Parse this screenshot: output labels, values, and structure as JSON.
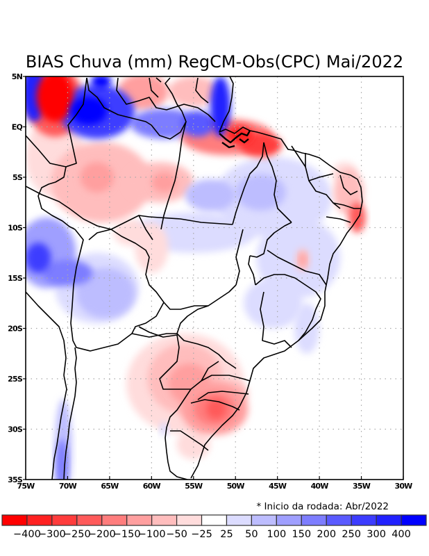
{
  "chart_data": {
    "type": "heatmap",
    "title": "BIAS Chuva (mm) RegCM-Obs(CPC) Mai/2022",
    "note": "* Inicio da rodada: Abr/2022",
    "variable": "Precipitation bias (mm), RegCM minus CPC observations",
    "xlim": [
      -75,
      -30
    ],
    "ylim": [
      -35,
      5
    ],
    "grid": true,
    "x_ticks": [
      {
        "value": -75,
        "label": "75W"
      },
      {
        "value": -70,
        "label": "70W"
      },
      {
        "value": -65,
        "label": "65W"
      },
      {
        "value": -60,
        "label": "60W"
      },
      {
        "value": -55,
        "label": "55W"
      },
      {
        "value": -50,
        "label": "50W"
      },
      {
        "value": -45,
        "label": "45W"
      },
      {
        "value": -40,
        "label": "40W"
      },
      {
        "value": -35,
        "label": "35W"
      },
      {
        "value": -30,
        "label": "30W"
      }
    ],
    "y_ticks": [
      {
        "value": 5,
        "label": "5N"
      },
      {
        "value": 0,
        "label": "EQ"
      },
      {
        "value": -5,
        "label": "5S"
      },
      {
        "value": -10,
        "label": "10S"
      },
      {
        "value": -15,
        "label": "15S"
      },
      {
        "value": -20,
        "label": "20S"
      },
      {
        "value": -25,
        "label": "25S"
      },
      {
        "value": -30,
        "label": "30S"
      },
      {
        "value": -35,
        "label": "35S"
      }
    ],
    "colorbar": {
      "placement": "bottom",
      "colors": [
        "#ff0000",
        "#ff2121",
        "#ff3c3c",
        "#ff5a5a",
        "#ff7d7d",
        "#ff9f9f",
        "#ffbdbd",
        "#ffdcdc",
        "#ffffff",
        "#dcdcff",
        "#bdbdff",
        "#9f9fff",
        "#7d7dff",
        "#5a5aff",
        "#3c3cff",
        "#2121ff",
        "#0000ff"
      ],
      "labels": [
        "-400",
        "-300",
        "-250",
        "-200",
        "-150",
        "-100",
        "-50",
        "-25",
        "25",
        "50",
        "100",
        "150",
        "200",
        "250",
        "300",
        "400"
      ]
    },
    "features": [
      {
        "name": "north-amazon-dry",
        "lon": -71.5,
        "lat": 3.0,
        "rx": 2.2,
        "ry": 2.5,
        "level": 0
      },
      {
        "name": "north-amazon-dry-ring",
        "lon": -71.5,
        "lat": 2.5,
        "rx": 3.4,
        "ry": 3.5,
        "level": 3
      },
      {
        "name": "roraima-wet",
        "lon": -66.5,
        "lat": 1.5,
        "rx": 4.5,
        "ry": 2.7,
        "level": 14
      },
      {
        "name": "roraima-wet-core",
        "lon": -67.5,
        "lat": 1.6,
        "rx": 2.2,
        "ry": 1.4,
        "level": 16
      },
      {
        "name": "nw-corner-wet",
        "lon": -74.0,
        "lat": 3.5,
        "rx": 1.5,
        "ry": 3.0,
        "level": 15
      },
      {
        "name": "venezuela-wet",
        "lon": -66.0,
        "lat": 4.5,
        "rx": 1.2,
        "ry": 0.7,
        "level": 16
      },
      {
        "name": "guyana-dry",
        "lon": -61.0,
        "lat": 3.5,
        "rx": 3.0,
        "ry": 1.8,
        "level": 5
      },
      {
        "name": "amapa-wet",
        "lon": -51.8,
        "lat": 2.0,
        "rx": 1.2,
        "ry": 3.0,
        "level": 15
      },
      {
        "name": "para-north-wet",
        "lon": -58.5,
        "lat": 0.3,
        "rx": 4.0,
        "ry": 1.5,
        "level": 12
      },
      {
        "name": "para-north-wet2",
        "lon": -54.5,
        "lat": 0.3,
        "rx": 2.0,
        "ry": 1.3,
        "level": 13
      },
      {
        "name": "suriname-dry",
        "lon": -55.0,
        "lat": 3.5,
        "rx": 3.0,
        "ry": 1.5,
        "level": 6
      },
      {
        "name": "para-coast-dry",
        "lon": -51.0,
        "lat": -1.0,
        "rx": 5.5,
        "ry": 1.8,
        "level": 4
      },
      {
        "name": "maranhao-coast-dry",
        "lon": -47.0,
        "lat": -1.8,
        "rx": 2.5,
        "ry": 1.2,
        "level": 2
      },
      {
        "name": "marajo-dry",
        "lon": -49.5,
        "lat": -0.8,
        "rx": 1.6,
        "ry": 0.9,
        "level": 1
      },
      {
        "name": "west-amazon-dry",
        "lon": -71.5,
        "lat": -3.0,
        "rx": 3.5,
        "ry": 4.0,
        "level": 7
      },
      {
        "name": "central-amazon-dry",
        "lon": -66.0,
        "lat": -5.5,
        "rx": 6.0,
        "ry": 4.0,
        "level": 6
      },
      {
        "name": "central-amazon-dry-core",
        "lon": -66.5,
        "lat": -5.0,
        "rx": 2.0,
        "ry": 1.5,
        "level": 5
      },
      {
        "name": "amazonas-dry",
        "lon": -59.0,
        "lat": -5.5,
        "rx": 4.0,
        "ry": 2.0,
        "level": 6
      },
      {
        "name": "amazonas-dry-core",
        "lon": -58.5,
        "lat": -5.5,
        "rx": 1.5,
        "ry": 1.0,
        "level": 5
      },
      {
        "name": "nordeste-wet",
        "lon": -45.5,
        "lat": -7.0,
        "rx": 7.0,
        "ry": 4.0,
        "level": 9
      },
      {
        "name": "nordeste-wet-core",
        "lon": -47.0,
        "lat": -6.5,
        "rx": 3.0,
        "ry": 1.8,
        "level": 10
      },
      {
        "name": "tapajos-wet",
        "lon": -53.0,
        "lat": -6.8,
        "rx": 3.0,
        "ry": 1.6,
        "level": 10
      },
      {
        "name": "pe-dry",
        "lon": -36.5,
        "lat": -6.5,
        "rx": 1.8,
        "ry": 2.3,
        "level": 6
      },
      {
        "name": "al-dry",
        "lon": -35.5,
        "lat": -9.0,
        "rx": 1.0,
        "ry": 1.5,
        "level": 3
      },
      {
        "name": "rn-dry",
        "lon": -37.0,
        "lat": -4.5,
        "rx": 1.5,
        "ry": 1.0,
        "level": 7
      },
      {
        "name": "bahia-wet",
        "lon": -42.5,
        "lat": -13.0,
        "rx": 5.0,
        "ry": 4.0,
        "level": 9
      },
      {
        "name": "bahia-dry-spot",
        "lon": -42.0,
        "lat": -13.2,
        "rx": 0.8,
        "ry": 1.1,
        "level": 6
      },
      {
        "name": "bahia-dry-core",
        "lon": -42.0,
        "lat": -13.2,
        "rx": 0.4,
        "ry": 0.6,
        "level": 5
      },
      {
        "name": "mato-grosso-wet",
        "lon": -55.0,
        "lat": -10.5,
        "rx": 7.5,
        "ry": 2.0,
        "level": 9
      },
      {
        "name": "minas-wet",
        "lon": -45.5,
        "lat": -17.5,
        "rx": 3.5,
        "ry": 2.5,
        "level": 9
      },
      {
        "name": "espirito-santo-wet",
        "lon": -41.5,
        "lat": -20.0,
        "rx": 1.5,
        "ry": 2.5,
        "level": 9
      },
      {
        "name": "peru-wet",
        "lon": -72.5,
        "lat": -12.5,
        "rx": 3.5,
        "ry": 3.5,
        "level": 11
      },
      {
        "name": "peru-wet-core",
        "lon": -73.5,
        "lat": -13.0,
        "rx": 1.5,
        "ry": 1.5,
        "level": 14
      },
      {
        "name": "peru-wet-band",
        "lon": -70.0,
        "lat": -14.5,
        "rx": 3.0,
        "ry": 1.3,
        "level": 12
      },
      {
        "name": "bolivia-wet",
        "lon": -65.5,
        "lat": -16.5,
        "rx": 3.5,
        "ry": 2.5,
        "level": 10
      },
      {
        "name": "bolivia-wet-outer",
        "lon": -66.5,
        "lat": -16.0,
        "rx": 5.0,
        "ry": 3.5,
        "level": 9
      },
      {
        "name": "rondonia-dry",
        "lon": -60.0,
        "lat": -12.0,
        "rx": 2.0,
        "ry": 2.5,
        "level": 7
      },
      {
        "name": "rondonia-dry2",
        "lon": -62.5,
        "lat": -10.5,
        "rx": 2.0,
        "ry": 1.3,
        "level": 7
      },
      {
        "name": "paraguay-dry-outer",
        "lon": -56.0,
        "lat": -25.5,
        "rx": 7.0,
        "ry": 5.0,
        "level": 7
      },
      {
        "name": "paraguay-dry",
        "lon": -56.0,
        "lat": -25.0,
        "rx": 4.5,
        "ry": 3.5,
        "level": 6
      },
      {
        "name": "paraguay-dry-mid",
        "lon": -55.5,
        "lat": -25.5,
        "rx": 2.5,
        "ry": 2.0,
        "level": 5
      },
      {
        "name": "rs-dry",
        "lon": -52.5,
        "lat": -28.0,
        "rx": 4.0,
        "ry": 2.6,
        "level": 5
      },
      {
        "name": "rs-dry-mid",
        "lon": -52.5,
        "lat": -28.0,
        "rx": 2.5,
        "ry": 1.6,
        "level": 4
      },
      {
        "name": "rs-dry-core",
        "lon": -52.3,
        "lat": -28.0,
        "rx": 1.2,
        "ry": 1.0,
        "level": 3
      },
      {
        "name": "santa-catarina-dry",
        "lon": -51.0,
        "lat": -26.5,
        "rx": 2.5,
        "ry": 1.4,
        "level": 6
      },
      {
        "name": "uruguay-dry",
        "lon": -55.0,
        "lat": -31.5,
        "rx": 2.0,
        "ry": 1.5,
        "level": 7
      },
      {
        "name": "chile-wet",
        "lon": -70.5,
        "lat": -32.0,
        "rx": 1.0,
        "ry": 5.0,
        "level": 10
      },
      {
        "name": "chile-wet-core",
        "lon": -70.7,
        "lat": -33.5,
        "rx": 0.7,
        "ry": 2.5,
        "level": 12
      },
      {
        "name": "argentina-wet-spot",
        "lon": -58.5,
        "lat": -30.0,
        "rx": 0.5,
        "ry": 0.7,
        "level": 9
      }
    ]
  }
}
